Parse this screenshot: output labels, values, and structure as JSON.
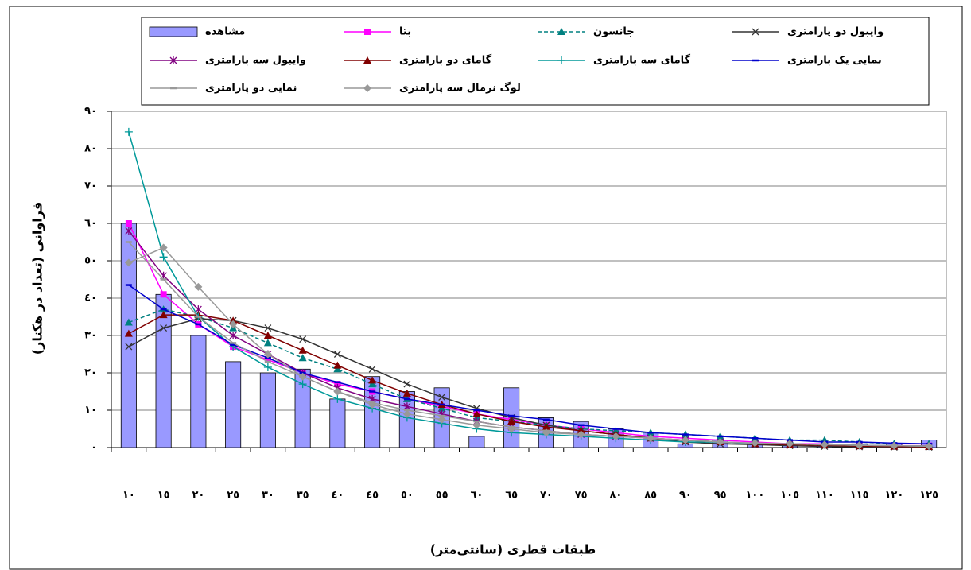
{
  "chart_data": {
    "type": "bar",
    "xlabel": "طبقات قطری (سانتی‌متر)",
    "ylabel": "فراوانی (تعداد در هکتار)",
    "categories": [
      "١٠",
      "١٥",
      "٢٠",
      "٢٥",
      "٣٠",
      "٣٥",
      "٤٠",
      "٤٥",
      "٥٠",
      "٥٥",
      "٦٠",
      "٦٥",
      "٧٠",
      "٧٥",
      "٨٠",
      "٨٥",
      "٩٠",
      "٩٥",
      "١٠٠",
      "١٠٥",
      "١١٠",
      "١١٥",
      "١٢٠",
      "١٢٥"
    ],
    "ylim": [
      0,
      90
    ],
    "yticks": [
      {
        "value": 0,
        "label": "٠"
      },
      {
        "value": 10,
        "label": "١٠"
      },
      {
        "value": 20,
        "label": "٢٠"
      },
      {
        "value": 30,
        "label": "٣٠"
      },
      {
        "value": 40,
        "label": "٤٠"
      },
      {
        "value": 50,
        "label": "٥٠"
      },
      {
        "value": 60,
        "label": "٦٠"
      },
      {
        "value": 70,
        "label": "٧٠"
      },
      {
        "value": 80,
        "label": "٨٠"
      },
      {
        "value": 90,
        "label": "٩٠"
      }
    ],
    "grid": true,
    "legend": "top",
    "series": [
      {
        "name": "مشاهده",
        "type": "bar",
        "color": "#9999ff",
        "values": [
          60,
          41,
          30,
          23,
          20,
          21,
          13,
          19,
          15,
          16,
          3,
          16,
          8,
          7,
          5,
          4,
          1,
          2,
          1,
          1,
          1,
          1,
          1,
          2
        ]
      },
      {
        "name": "بتا",
        "type": "line",
        "color": "#ff00ff",
        "marker": "square",
        "values": [
          60,
          41,
          33,
          27,
          23.5,
          20,
          17,
          15,
          13,
          11,
          9,
          7.5,
          6,
          5,
          4,
          3,
          2.5,
          2,
          1.5,
          1,
          1,
          0.5,
          0.5,
          0.5
        ]
      },
      {
        "name": "جانسون",
        "type": "line",
        "color": "#008080",
        "marker": "triangle",
        "dash": true,
        "values": [
          33.5,
          37,
          35,
          32,
          28,
          24,
          21,
          17,
          13,
          10.5,
          8,
          7,
          6,
          5,
          4.5,
          4,
          3.5,
          3,
          2.5,
          2,
          2,
          1.5,
          1,
          1
        ]
      },
      {
        "name": "وایبول دو پارامتری",
        "type": "line",
        "color": "#333333",
        "marker": "x",
        "values": [
          27,
          32,
          34.5,
          34,
          32,
          29,
          25,
          21,
          17,
          13.5,
          10.5,
          8,
          6,
          4.5,
          3.5,
          2.5,
          1.5,
          1,
          0.8,
          0.5,
          0.3,
          0.2,
          0.1,
          0.1
        ]
      },
      {
        "name": "وایبول سه پارامتری",
        "type": "line",
        "color": "#800080",
        "marker": "star",
        "values": [
          58,
          46,
          37,
          30,
          25,
          20,
          16,
          13,
          11,
          9,
          7,
          5.5,
          4.5,
          3.5,
          3,
          2.5,
          2,
          1.5,
          1,
          1,
          0.8,
          0.6,
          0.5,
          0.4
        ]
      },
      {
        "name": "گامای دو پارامتری",
        "type": "line",
        "color": "#800000",
        "marker": "triangle",
        "values": [
          30.5,
          35.5,
          35.5,
          34,
          30,
          26,
          22,
          18,
          14.5,
          11.5,
          9,
          7,
          5.5,
          4.5,
          3.5,
          2.5,
          2,
          1.5,
          1,
          0.8,
          0.6,
          0.4,
          0.3,
          0.2
        ]
      },
      {
        "name": "گامای سه پارامتری",
        "type": "line",
        "color": "#009999",
        "marker": "plus",
        "values": [
          84.5,
          51,
          35,
          27,
          21.5,
          17,
          13,
          10.5,
          8,
          6.5,
          5,
          4,
          3.5,
          3,
          2.5,
          2,
          1.5,
          1.5,
          1,
          1,
          0.8,
          0.6,
          0.5,
          0.4
        ]
      },
      {
        "name": "نمایی یک پارامتری",
        "type": "line",
        "color": "#0000cc",
        "marker": "dash",
        "values": [
          43.5,
          37,
          33,
          27.5,
          24,
          20,
          17.5,
          15,
          13,
          11.5,
          10,
          8.5,
          7.5,
          6,
          5,
          4,
          3.5,
          3,
          2.5,
          2,
          1.5,
          1.5,
          1.2,
          1
        ]
      },
      {
        "name": "نمایی دو پارامتری",
        "type": "line",
        "color": "#999999",
        "marker": "dash",
        "values": [
          55,
          45,
          35,
          28,
          23,
          19,
          15,
          12,
          10,
          8.5,
          7,
          5.5,
          4.5,
          3.5,
          3,
          2.5,
          2,
          1.5,
          1.2,
          1,
          0.8,
          0.6,
          0.5,
          0.4
        ]
      },
      {
        "name": "لوگ نرمال سه پارامتری",
        "type": "line",
        "color": "#999999",
        "marker": "diamond",
        "values": [
          49.5,
          53.5,
          43,
          33,
          25,
          19,
          15,
          11.5,
          9,
          7.5,
          6,
          5,
          4,
          3.5,
          3,
          2.5,
          2,
          1.5,
          1.2,
          1,
          0.8,
          0.6,
          0.5,
          0.4
        ]
      }
    ]
  }
}
